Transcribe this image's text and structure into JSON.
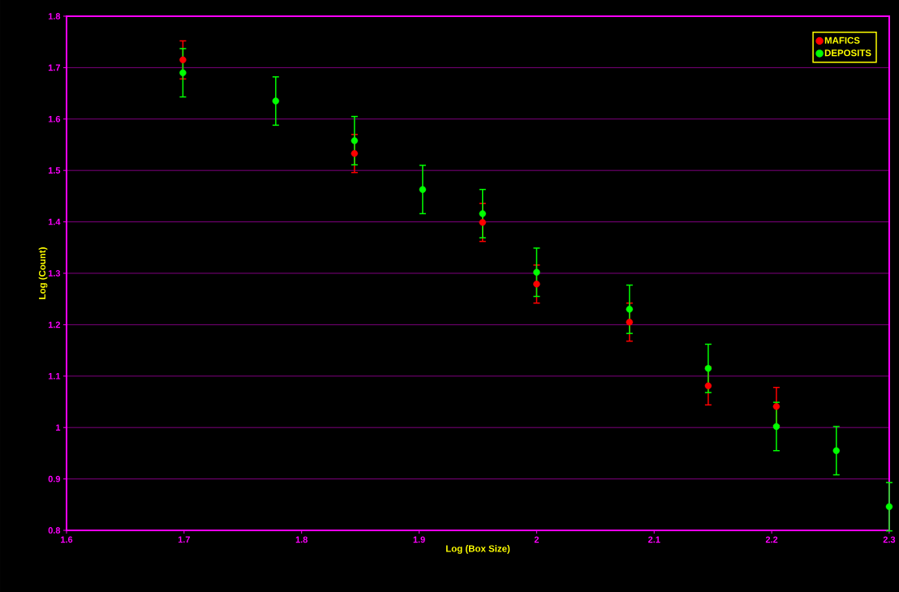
{
  "chart_data": {
    "type": "scatter",
    "xlabel": "Log (Box Size)",
    "ylabel": "Log (Count)",
    "x": [
      1.699,
      1.778,
      1.845,
      1.903,
      1.954,
      2.0,
      2.079,
      2.146,
      2.204,
      2.255,
      2.3
    ],
    "series": [
      {
        "name": "MAFICS",
        "color": "#ff0000",
        "values": [
          1.715,
          null,
          1.533,
          null,
          1.399,
          1.279,
          1.205,
          1.081,
          1.041,
          null,
          null
        ],
        "errors": [
          0.037,
          null,
          0.037,
          null,
          0.037,
          0.037,
          0.037,
          0.037,
          0.037,
          null,
          null
        ]
      },
      {
        "name": "DEPOSITS",
        "color": "#00ff00",
        "values": [
          1.69,
          1.635,
          1.558,
          1.463,
          1.416,
          1.302,
          1.23,
          1.115,
          1.002,
          0.955,
          0.846
        ],
        "errors": [
          0.047,
          0.047,
          0.047,
          0.047,
          0.047,
          0.047,
          0.047,
          0.047,
          0.047,
          0.047,
          0.047
        ]
      }
    ],
    "xlim": [
      1.6,
      2.3
    ],
    "ylim": [
      0.8,
      1.8
    ],
    "xticks": [
      1.6,
      1.7,
      1.8,
      1.9,
      2,
      2.1,
      2.2,
      2.3
    ],
    "yticks": [
      0.8,
      0.9,
      1,
      1.1,
      1.2,
      1.3,
      1.4,
      1.5,
      1.6,
      1.7,
      1.8
    ],
    "grid": "y",
    "legend": "top right",
    "marker": "circle"
  }
}
